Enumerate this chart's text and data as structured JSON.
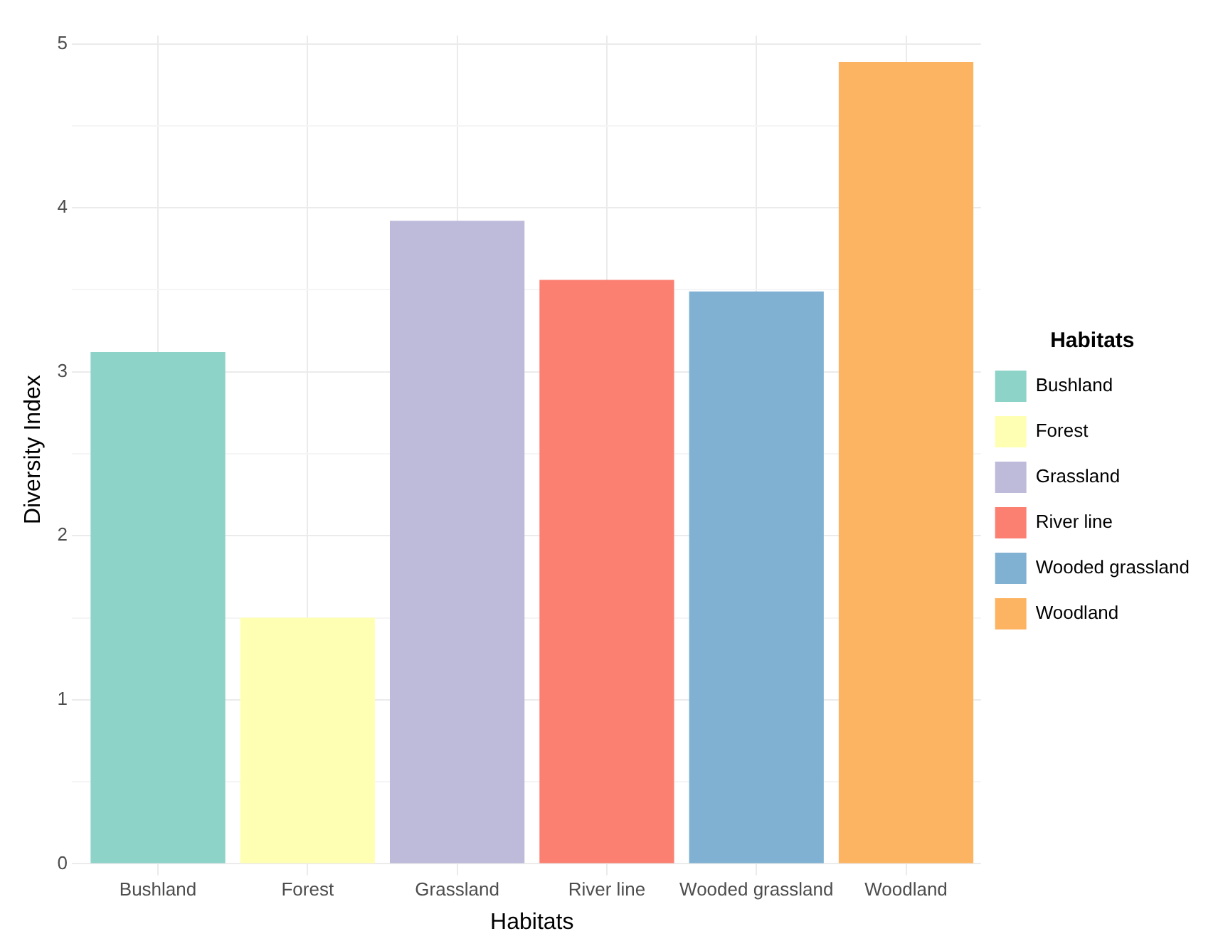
{
  "chart_data": {
    "type": "bar",
    "xlabel": "Habitats",
    "ylabel": "Diversity Index",
    "legend_title": "Habitats",
    "categories": [
      "Bushland",
      "Forest",
      "Grassland",
      "River line",
      "Wooded grassland",
      "Woodland"
    ],
    "series": [
      {
        "name": "Bushland",
        "color": "#8dd3c7",
        "values": [
          3.12,
          null,
          null,
          null,
          null,
          null
        ]
      },
      {
        "name": "Forest",
        "color": "#ffffb3",
        "values": [
          null,
          1.5,
          null,
          null,
          null,
          null
        ]
      },
      {
        "name": "Grassland",
        "color": "#bebada",
        "values": [
          null,
          null,
          3.92,
          null,
          null,
          null
        ]
      },
      {
        "name": "River line",
        "color": "#fb8072",
        "values": [
          null,
          null,
          null,
          3.56,
          null,
          null
        ]
      },
      {
        "name": "Wooded grassland",
        "color": "#80b1d3",
        "values": [
          null,
          null,
          null,
          null,
          3.49,
          null
        ]
      },
      {
        "name": "Woodland",
        "color": "#fdb462",
        "values": [
          null,
          null,
          null,
          null,
          null,
          4.89
        ]
      }
    ],
    "ylim": [
      0,
      5.05
    ],
    "yticks": [
      0,
      {
        "value": 0.5,
        "label": null
      },
      1,
      {
        "value": 1.5,
        "label": null
      },
      2,
      {
        "value": 2.5,
        "label": null
      },
      3,
      {
        "value": 3.5,
        "label": null
      },
      4,
      {
        "value": 4.5,
        "label": null
      },
      5
    ],
    "grid": true,
    "legend": "right"
  }
}
